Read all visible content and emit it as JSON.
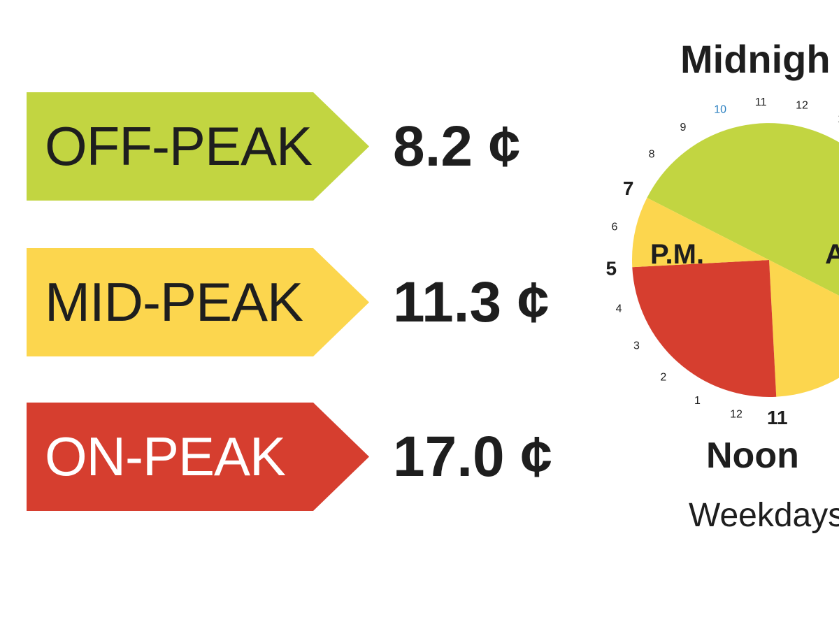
{
  "tiers": [
    {
      "label": "OFF-PEAK",
      "price": "8.2 ¢",
      "color": "#c2d541"
    },
    {
      "label": "MID-PEAK",
      "price": "11.3 ¢",
      "color": "#fcd64e"
    },
    {
      "label": "ON-PEAK",
      "price": "17.0 ¢",
      "color": "#d63e2f"
    }
  ],
  "clock": {
    "top_label": "Midnigh",
    "bottom_label": "Noon",
    "sub_label": "Weekdays",
    "pm_label": "P.M.",
    "am_label": "A",
    "hour_labels": [
      "11",
      "12",
      "1",
      "10",
      "9",
      "8",
      "7",
      "6",
      "5",
      "4",
      "3",
      "2",
      "1",
      "12",
      "11"
    ]
  },
  "chart_data": {
    "type": "pie",
    "title": "",
    "categories": [
      "OFF-PEAK",
      "MID-PEAK",
      "ON-PEAK",
      "MID-PEAK"
    ],
    "segments": [
      {
        "tier": "OFF-PEAK",
        "from_hour": 19,
        "to_hour": 7
      },
      {
        "tier": "MID-PEAK",
        "from_hour": 7,
        "to_hour": 11
      },
      {
        "tier": "ON-PEAK",
        "from_hour": 11,
        "to_hour": 17
      },
      {
        "tier": "MID-PEAK",
        "from_hour": 17,
        "to_hour": 19
      }
    ],
    "colors": [
      "#c2d541",
      "#fcd64e",
      "#d63e2f",
      "#fcd64e"
    ]
  }
}
